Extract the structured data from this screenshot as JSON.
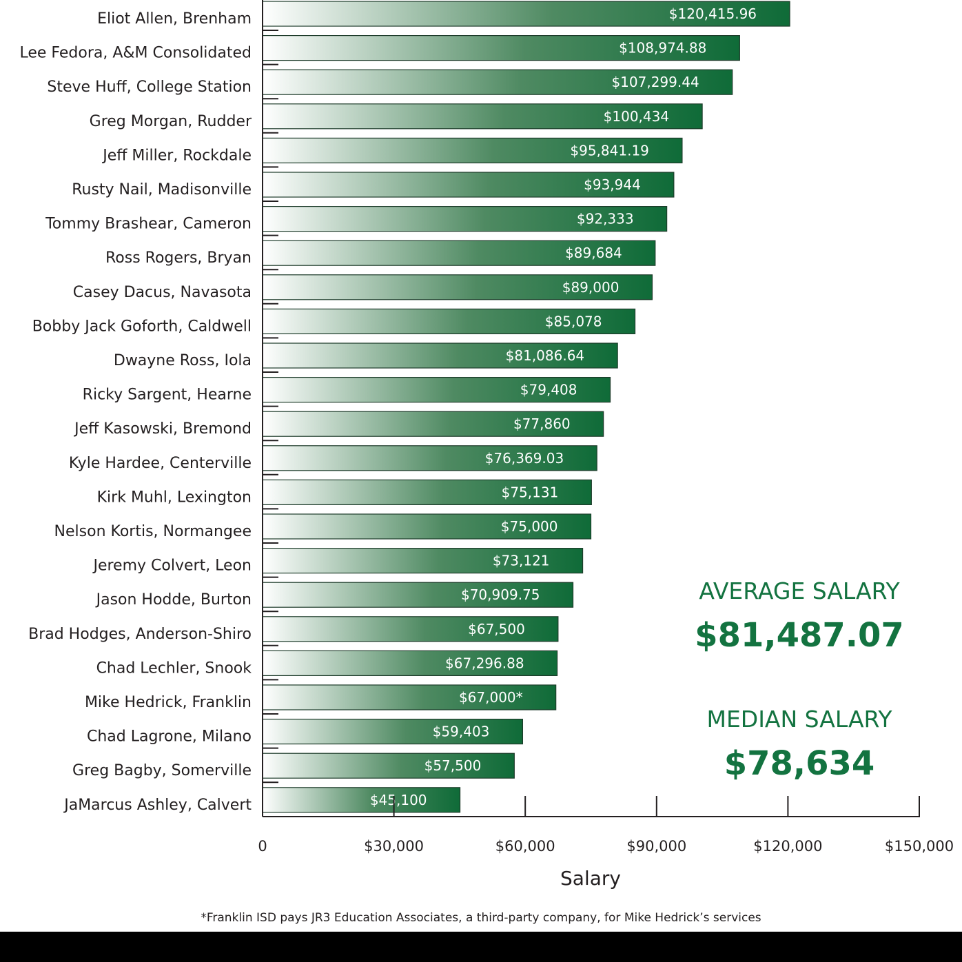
{
  "colors": {
    "bar_dark": "#0f6b38",
    "bar_light": "#ffffff",
    "stat_text": "#137340",
    "axis": "#231f20"
  },
  "chart_data": {
    "type": "bar",
    "orientation": "horizontal",
    "xlabel": "Salary",
    "xlim": [
      0,
      150000
    ],
    "xticks": [
      0,
      30000,
      60000,
      90000,
      120000,
      150000
    ],
    "xtick_labels": [
      "0",
      "$30,000",
      "$60,000",
      "$90,000",
      "$120,000",
      "$150,000"
    ],
    "categories": [
      "Eliot Allen, Brenham",
      "Lee Fedora, A&M Consolidated",
      "Steve Huff, College Station",
      "Greg Morgan, Rudder",
      "Jeff Miller, Rockdale",
      "Rusty Nail, Madisonville",
      "Tommy Brashear, Cameron",
      "Ross Rogers, Bryan",
      "Casey Dacus, Navasota",
      "Bobby Jack Goforth, Caldwell",
      "Dwayne Ross, Iola",
      "Ricky Sargent, Hearne",
      "Jeff Kasowski, Bremond",
      "Kyle Hardee, Centerville",
      "Kirk Muhl, Lexington",
      "Nelson Kortis, Normangee",
      "Jeremy Colvert, Leon",
      "Jason Hodde, Burton",
      "Brad Hodges, Anderson-Shiro",
      "Chad Lechler, Snook",
      "Mike Hedrick, Franklin",
      "Chad Lagrone, Milano",
      "Greg Bagby, Somerville",
      "JaMarcus Ashley, Calvert"
    ],
    "values": [
      120415.96,
      108974.88,
      107299.44,
      100434,
      95841.19,
      93944,
      92333,
      89684,
      89000,
      85078,
      81086.64,
      79408,
      77860,
      76369.03,
      75131,
      75000,
      73121,
      70909.75,
      67500,
      67296.88,
      67000,
      59403,
      57500,
      45100
    ],
    "value_labels": [
      "$120,415.96",
      "$108,974.88",
      "$107,299.44",
      "$100,434",
      "$95,841.19",
      "$93,944",
      "$92,333",
      "$89,684",
      "$89,000",
      "$85,078",
      "$81,086.64",
      "$79,408",
      "$77,860",
      "$76,369.03",
      "$75,131",
      "$75,000",
      "$73,121",
      "$70,909.75",
      "$67,500",
      "$67,296.88",
      "$67,000*",
      "$59,403",
      "$57,500",
      "$45,100"
    ]
  },
  "stats": {
    "average_title": "AVERAGE SALARY",
    "average_value": "$81,487.07",
    "median_title": "MEDIAN SALARY",
    "median_value": "$78,634"
  },
  "footnote": "*Franklin ISD pays JR3 Education Associates, a third-party company, for Mike Hedrick’s services"
}
